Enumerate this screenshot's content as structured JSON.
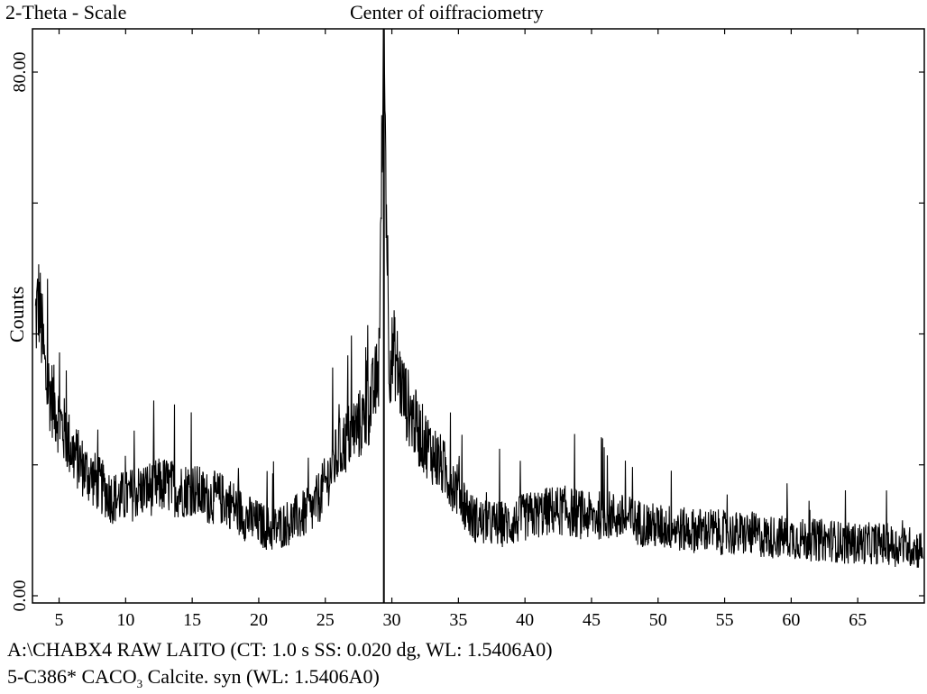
{
  "header": {
    "scale_label": "2-Theta  -  Scale",
    "title": "Center of oiffraciometry"
  },
  "footer": {
    "line1": "A:\\CHABX4 RAW LAITO (CT: 1.0 s SS: 0.020 dg,  WL: 1.5406A0)",
    "line2_prefix": "5-C386* CACO",
    "line2_sub": "3",
    "line2_suffix": " Calcite. syn (WL: 1.5406A0)"
  },
  "chart_data": {
    "type": "line",
    "xlabel": "",
    "ylabel": "Counts",
    "xlim": [
      3,
      70
    ],
    "ylim": [
      0,
      80
    ],
    "xticks": [
      5,
      10,
      15,
      20,
      25,
      30,
      35,
      40,
      45,
      50,
      55,
      60,
      65
    ],
    "yticks": [
      0,
      80
    ],
    "ytick_labels": [
      "0.00",
      "80.00"
    ],
    "grid": false,
    "series": [
      {
        "x": [
          3.2,
          3.5,
          4,
          5,
          6,
          7,
          8,
          9,
          10,
          11,
          12,
          13,
          14,
          15,
          16,
          17,
          18,
          19,
          20,
          21,
          22,
          23,
          24,
          25,
          26,
          27,
          28,
          28.5,
          29,
          29.4,
          29.8,
          30.2,
          30.6,
          31,
          32,
          33,
          34,
          35,
          36,
          37,
          38,
          39,
          40,
          41,
          42,
          43,
          44,
          45,
          46,
          47,
          48,
          49,
          50,
          51,
          52,
          53,
          54,
          55,
          56,
          57,
          58,
          59,
          60,
          61,
          62,
          63,
          64,
          65,
          66,
          67,
          68,
          69,
          69.9
        ],
        "values": [
          42,
          45,
          33,
          27,
          22,
          19,
          17,
          15,
          15,
          16,
          16.5,
          17,
          16,
          16.5,
          15,
          15,
          14,
          12,
          11,
          10,
          11,
          12,
          13,
          17,
          22,
          25,
          27,
          30,
          34,
          84,
          36,
          37,
          33,
          30,
          25,
          22,
          19,
          16,
          12,
          11,
          11,
          11,
          12,
          12.5,
          13,
          13,
          12.5,
          12,
          12.5,
          12,
          11.5,
          11,
          10.5,
          10.5,
          10,
          10,
          10,
          9.5,
          9.5,
          9.5,
          9,
          9,
          9,
          8.5,
          8.5,
          8.5,
          8,
          8,
          8,
          8,
          7.5,
          7.5,
          7
        ]
      }
    ]
  }
}
